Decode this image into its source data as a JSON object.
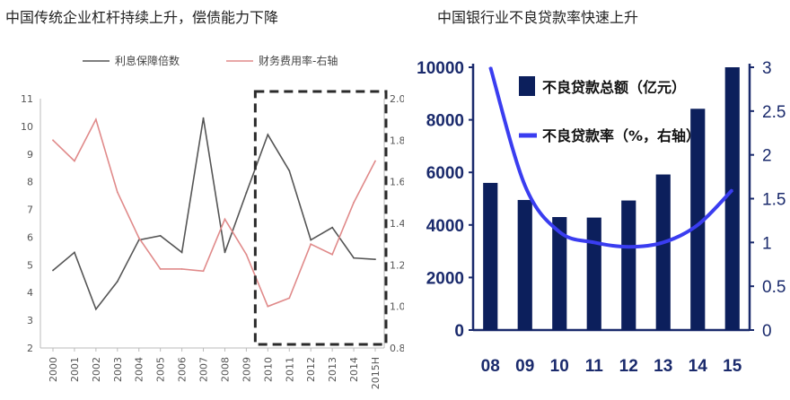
{
  "titles": {
    "left": "中国传统企业杠杆持续上升，偿债能力下降",
    "right": "中国银行业不良贷款率快速上升"
  },
  "colors": {
    "series_dark": "#555555",
    "series_pink": "#e08a8a",
    "bar_navy": "#0c1f5c",
    "line_blue": "#3a3df0",
    "axis_right": "#1a2a6c"
  },
  "chart_data": [
    {
      "type": "line",
      "title": "",
      "x": [
        "2000",
        "2001",
        "2002",
        "2003",
        "2004",
        "2005",
        "2006",
        "2007",
        "2008",
        "2009",
        "2010",
        "2011",
        "2012",
        "2013",
        "2014",
        "2015H"
      ],
      "series": [
        {
          "name": "利息保障倍数",
          "axis": "left",
          "values": [
            4.8,
            5.45,
            3.4,
            4.4,
            5.9,
            6.05,
            5.45,
            10.3,
            5.45,
            7.6,
            9.7,
            8.4,
            5.9,
            6.35,
            5.25,
            5.2
          ]
        },
        {
          "name": "财务费用率-右轴",
          "axis": "right",
          "values": [
            1.8,
            1.7,
            1.9,
            1.55,
            1.33,
            1.18,
            1.18,
            1.17,
            1.42,
            1.25,
            1.0,
            1.04,
            1.3,
            1.25,
            1.5,
            1.7
          ]
        }
      ],
      "yleft": {
        "lim": [
          2,
          11
        ],
        "ticks": [
          "2",
          "3",
          "4",
          "5",
          "6",
          "7",
          "8",
          "9",
          "10",
          "11"
        ]
      },
      "yright": {
        "lim": [
          0.8,
          2.0
        ],
        "ticks": [
          "0.8",
          "1.0",
          "1.2",
          "1.4",
          "1.6",
          "1.8",
          "2.0"
        ]
      },
      "highlight": {
        "from": "2010",
        "to": "2015H",
        "style": "dashed-box"
      },
      "legend_position": "top"
    },
    {
      "type": "bar",
      "title": "",
      "categories": [
        "08",
        "09",
        "10",
        "11",
        "12",
        "13",
        "14",
        "15"
      ],
      "series": [
        {
          "name": "不良贷款总额（亿元）",
          "type": "bar",
          "axis": "left",
          "values": [
            5600,
            4950,
            4300,
            4280,
            4930,
            5920,
            8420,
            10000
          ]
        },
        {
          "name": "不良贷款率（%，右轴）",
          "type": "line",
          "axis": "right",
          "values": [
            3.0,
            1.65,
            1.12,
            1.0,
            0.95,
            1.0,
            1.2,
            1.6
          ]
        }
      ],
      "yleft": {
        "lim": [
          0,
          10000
        ],
        "ticks": [
          "0",
          "2000",
          "4000",
          "6000",
          "8000",
          "10000"
        ]
      },
      "yright": {
        "lim": [
          0,
          3
        ],
        "ticks": [
          "0",
          "0.5",
          "1",
          "1.5",
          "2",
          "2.5",
          "3"
        ]
      },
      "legend_position": "top-left"
    }
  ]
}
